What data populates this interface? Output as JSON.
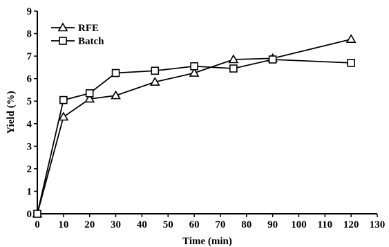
{
  "chart_data": {
    "type": "line",
    "title": "",
    "xlabel": "Time (min)",
    "ylabel": "Yield (%)",
    "xlim": [
      0,
      130
    ],
    "ylim": [
      0,
      9
    ],
    "xticks": [
      0,
      10,
      20,
      30,
      40,
      50,
      60,
      70,
      80,
      90,
      100,
      110,
      120,
      130
    ],
    "yticks": [
      0,
      1,
      2,
      3,
      4,
      5,
      6,
      7,
      8,
      9
    ],
    "grid": false,
    "legend_position": "top-left",
    "series": [
      {
        "name": "RFE",
        "marker": "triangle",
        "color": "#000000",
        "x": [
          0,
          10,
          20,
          30,
          45,
          60,
          75,
          90,
          120
        ],
        "y": [
          0,
          4.3,
          5.1,
          5.25,
          5.85,
          6.25,
          6.85,
          6.9,
          7.75
        ]
      },
      {
        "name": "Batch",
        "marker": "square",
        "color": "#000000",
        "x": [
          0,
          10,
          20,
          30,
          45,
          60,
          75,
          90,
          120
        ],
        "y": [
          0,
          5.05,
          5.35,
          6.25,
          6.35,
          6.55,
          6.45,
          6.85,
          6.7
        ]
      }
    ]
  }
}
